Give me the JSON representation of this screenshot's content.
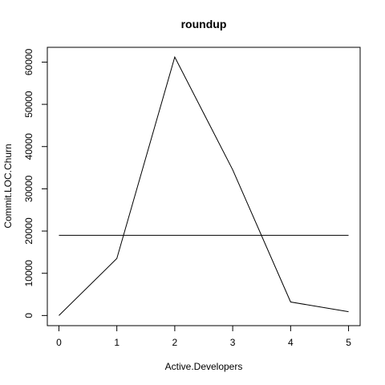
{
  "chart_data": {
    "type": "line",
    "title": "roundup",
    "xlabel": "Active.Developers",
    "ylabel": "Commit.LOC.Churn",
    "x": [
      0,
      1,
      2,
      3,
      4,
      5
    ],
    "series": [
      {
        "values": [
          0,
          13500,
          61200,
          34500,
          3200,
          900
        ]
      }
    ],
    "reference_line": {
      "y": 19000
    },
    "xlim": [
      -0.2,
      5.2
    ],
    "ylim": [
      -2400,
      63500
    ],
    "x_ticks": [
      "0",
      "1",
      "2",
      "3",
      "4",
      "5"
    ],
    "y_ticks": [
      "0",
      "10000",
      "20000",
      "30000",
      "40000",
      "50000",
      "60000"
    ],
    "grid": false,
    "legend": "none",
    "colors": {
      "line": "#000000",
      "reference": "#000000"
    }
  }
}
